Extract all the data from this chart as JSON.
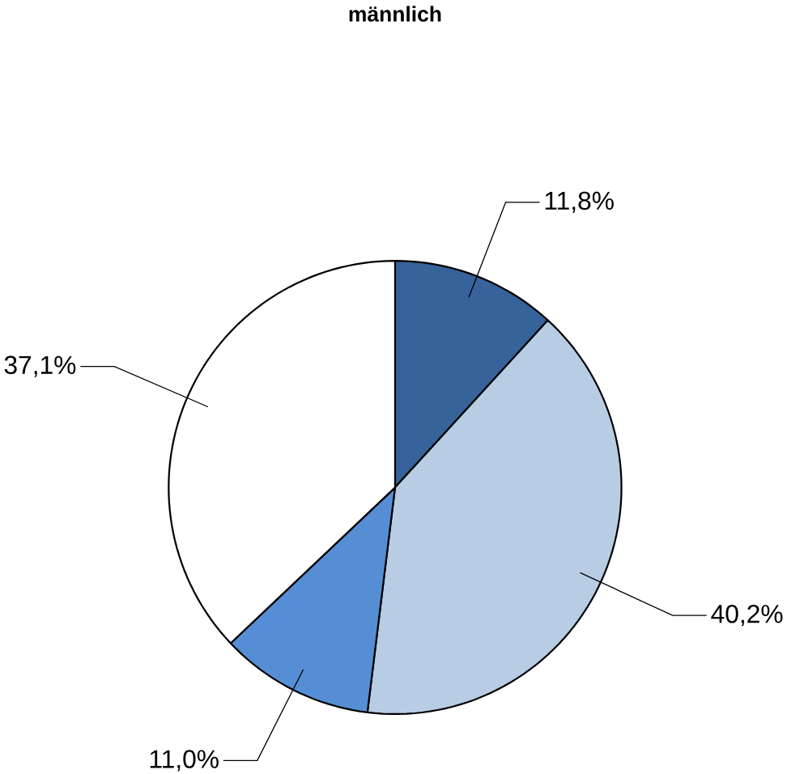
{
  "chart_data": {
    "type": "pie",
    "title": "männlich",
    "categories": [
      null,
      null,
      null,
      null
    ],
    "values": [
      11.8,
      40.2,
      11.0,
      37.1
    ],
    "value_labels": [
      "11,8%",
      "40,2%",
      "11,0%",
      "37,1%"
    ],
    "colors": [
      "#36639a",
      "#b8cde4",
      "#558ed5",
      "#ffffff"
    ]
  }
}
